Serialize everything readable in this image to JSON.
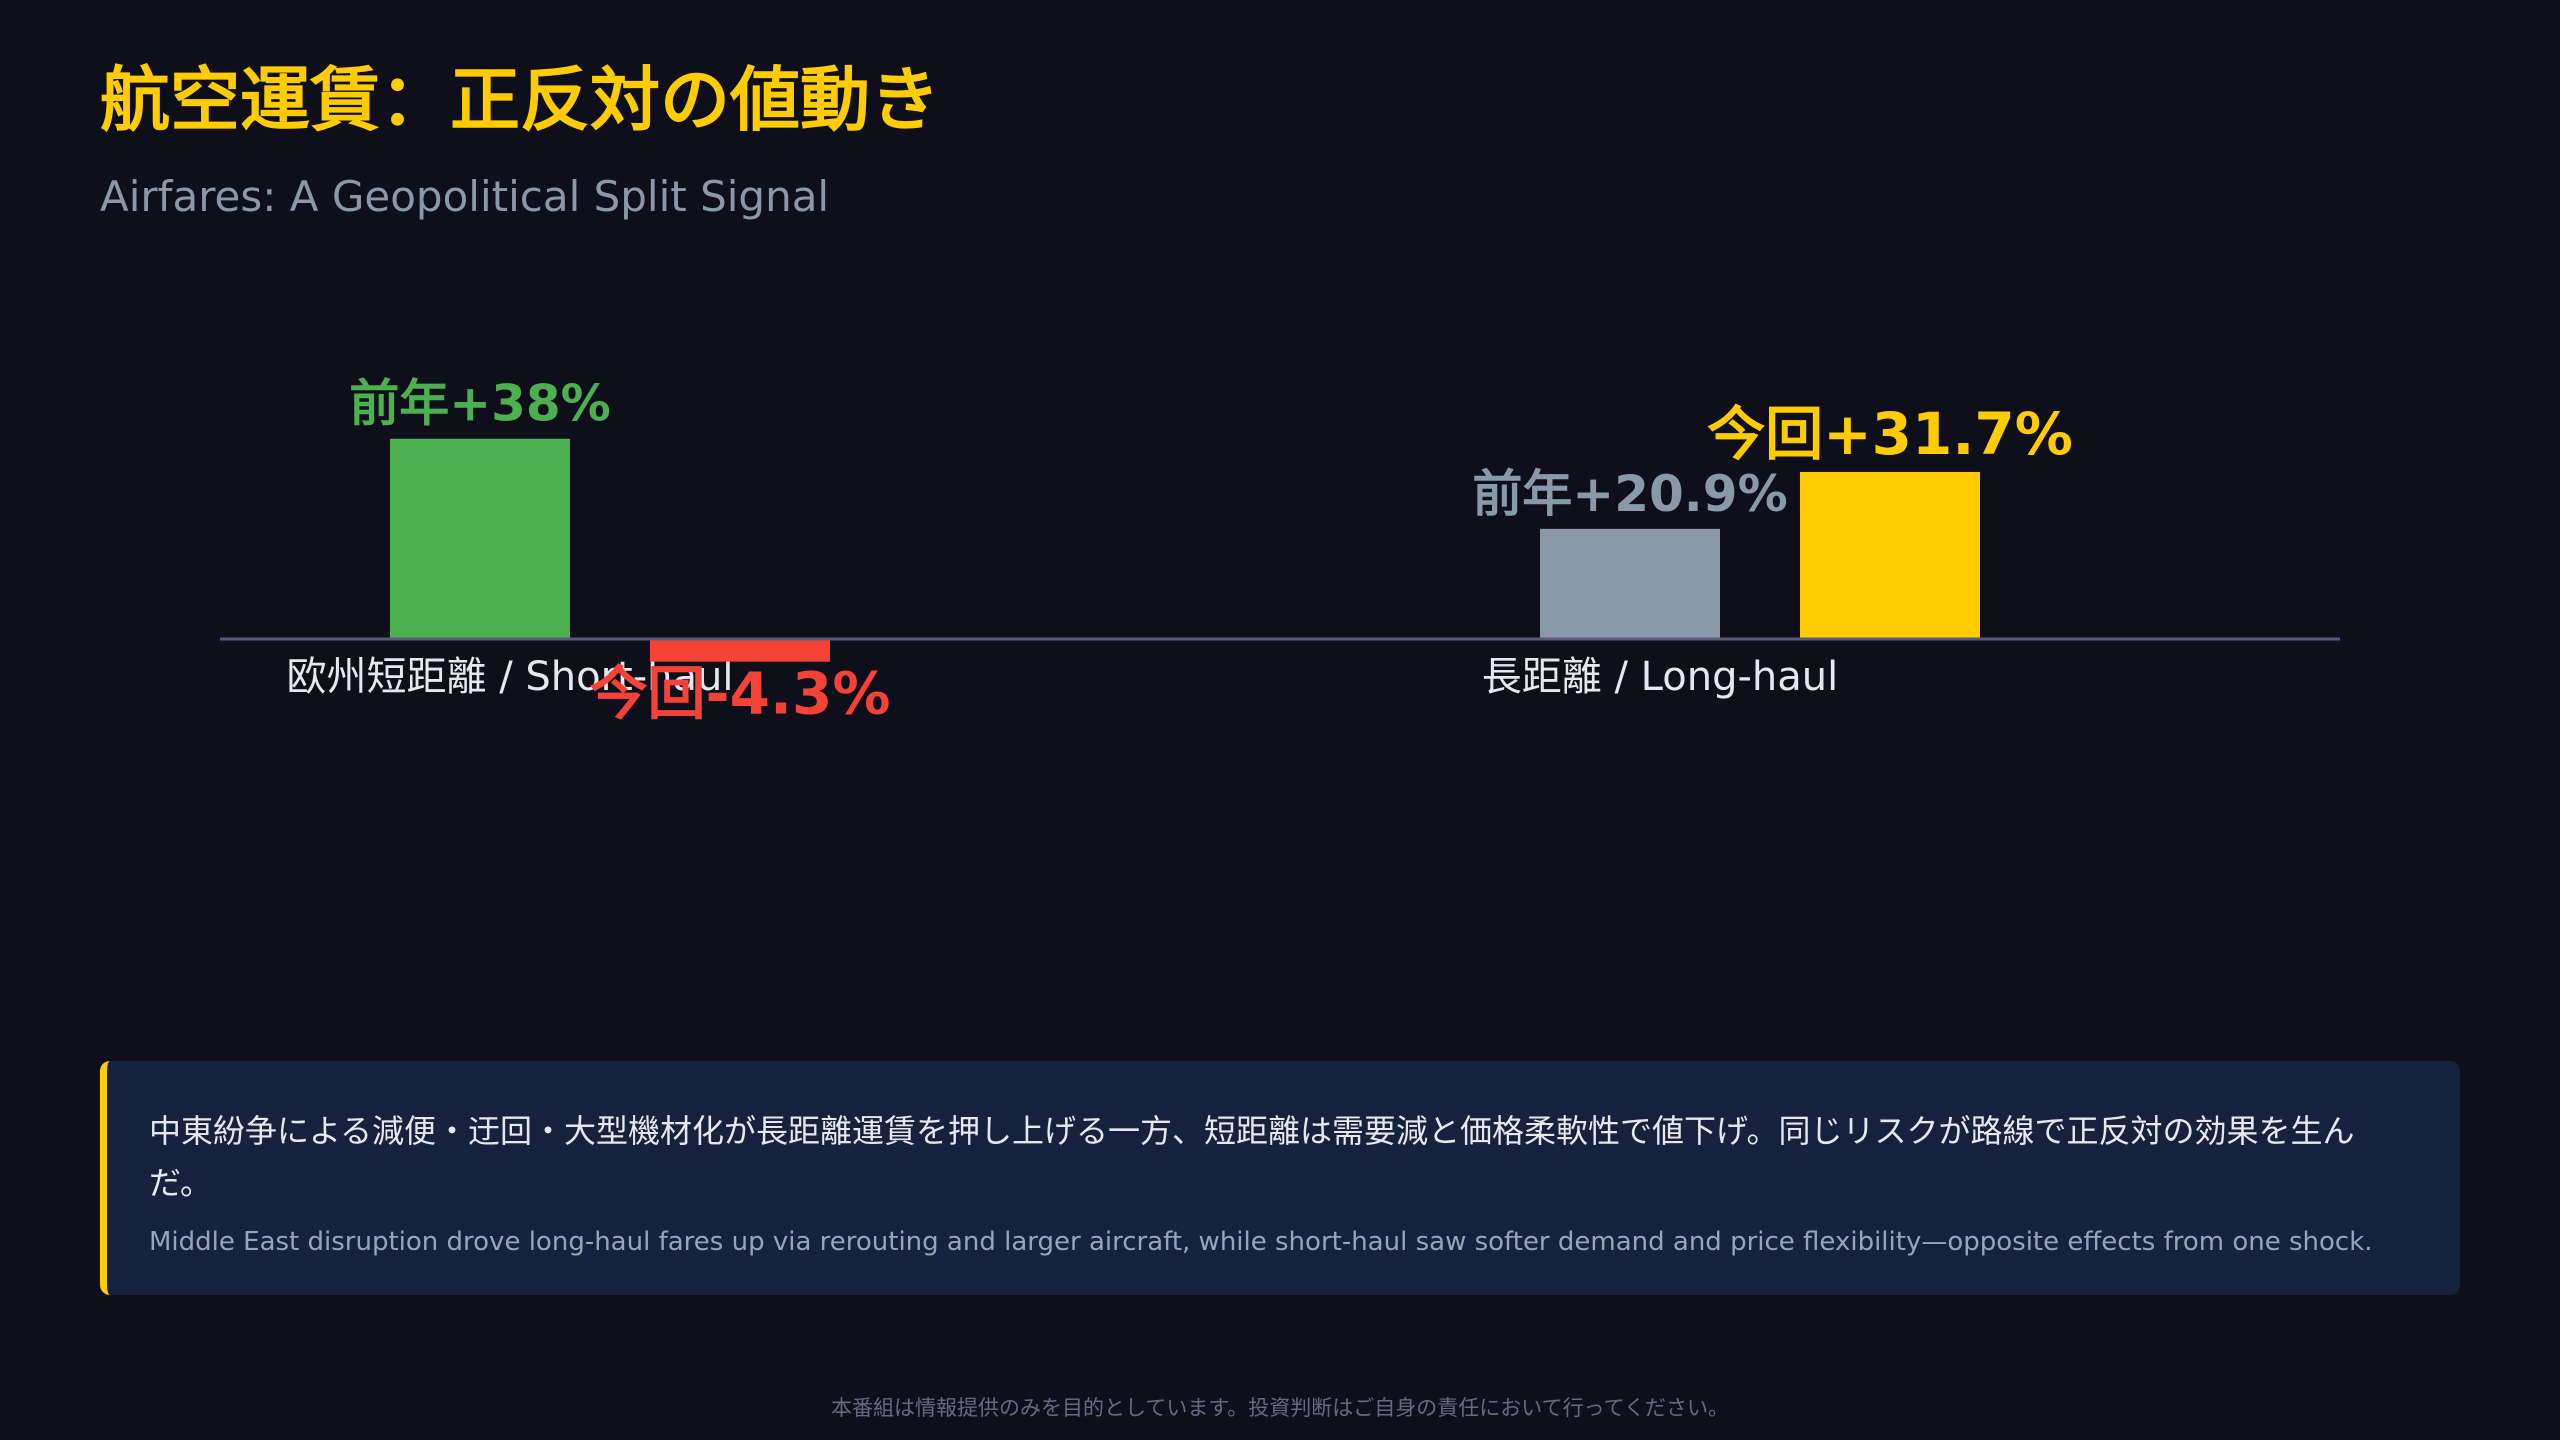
{
  "header": {
    "title": "航空運賃：正反対の値動き",
    "subtitle": "Airfares: A Geopolitical Split Signal"
  },
  "chart_data": {
    "type": "bar",
    "categories": [
      "欧州短距離 / Short-haul",
      "長距離 / Long-haul"
    ],
    "series": [
      {
        "name": "前年",
        "values": [
          38,
          20.9
        ],
        "colors": [
          "#4caf50",
          "#8899aa"
        ],
        "labels": [
          "前年+38%",
          "前年+20.9%"
        ]
      },
      {
        "name": "今回",
        "values": [
          -4.3,
          31.7
        ],
        "colors": [
          "#f44336",
          "#ffcc00"
        ],
        "labels": [
          "今回-4.3%",
          "今回+31.7%"
        ]
      }
    ],
    "unit": "%",
    "baseline": 0,
    "axis_color": "#5a5a78",
    "category_label_color": "#e6e8ee",
    "grid": false,
    "legend": "none"
  },
  "note": {
    "jp": "中東紛争による減便・迂回・大型機材化が長距離運賃を押し上げる一方、短距離は需要減と価格柔軟性で値下げ。同じリスクが路線で正反対の効果を生んだ。",
    "en": "Middle East disruption drove long-haul fares up via rerouting and larger aircraft, while short-haul saw softer demand and price flexibility—opposite effects from one shock.",
    "accent": "#ffcc00"
  },
  "footer": {
    "disclaimer": "本番組は情報提供のみを目的としています。投資判断はご自身の責任において行ってください。"
  }
}
